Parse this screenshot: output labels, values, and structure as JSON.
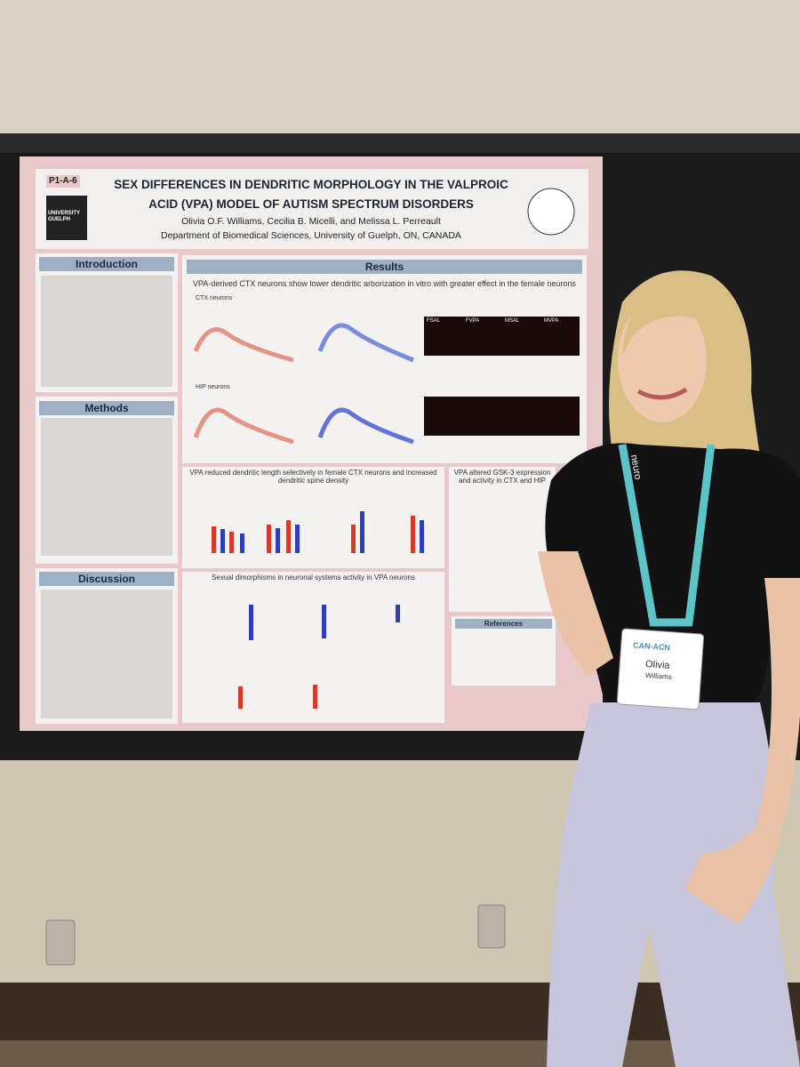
{
  "poster": {
    "board_number": "P1-A-6",
    "title_lines": [
      "SEX DIFFERENCES IN DENDRITIC MORPHOLOGY IN THE VALPROIC",
      "ACID (VPA) MODEL OF AUTISM SPECTRUM DISORDERS"
    ],
    "authors": "Olivia O.F. Williams, Cecilia B. Micelli, and Melissa L. Perreault",
    "affiliation": "Department of Biomedical Sciences, University of Guelph, ON, CANADA",
    "university_logo": "UNIVERSITY GUELPH",
    "sections": {
      "introduction": "Introduction",
      "methods": "Methods",
      "discussion": "Discussion",
      "results": "Results",
      "references": "References"
    },
    "results_panels": [
      "VPA-derived CTX neurons show lower dendritic arborization in vitro with greater effect in the female neurons",
      "VPA reduced dendritic length selectively in female CTX neurons and increased dendritic spine density",
      "VPA altered GSK-3 expression and activity in CTX and HIP",
      "Sexual dimorphisms in neuronal systems activity in VPA neurons"
    ],
    "region_labels": [
      "CTX neurons",
      "HIP neurons"
    ],
    "micrograph_labels": [
      "FSAL",
      "FVPA",
      "MSAL",
      "MVPA"
    ]
  },
  "badge": {
    "logo": "CAN-ACN",
    "first_name": "Olivia",
    "last_name": "Williams"
  },
  "lanyard_text": "neuro"
}
